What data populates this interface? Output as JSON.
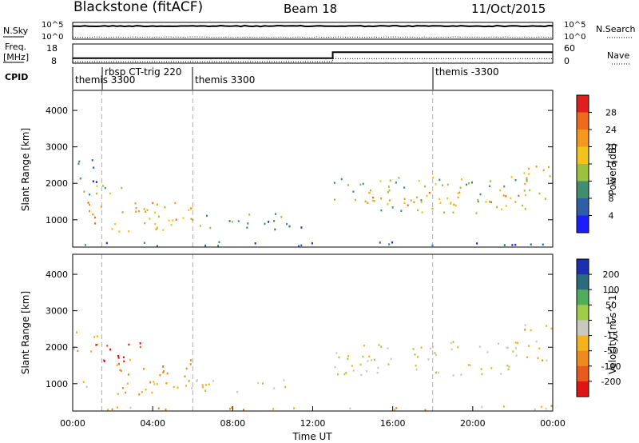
{
  "header": {
    "station": "Blackstone (fitACF)",
    "beam": "Beam 18",
    "date": "11/Oct/2015"
  },
  "top_panels": {
    "nsky": {
      "label": "N.Sky",
      "left_ticks": [
        "10^5",
        "10^0"
      ],
      "right_ticks": [
        "10^5",
        "10^0"
      ],
      "right_label": "N.Search"
    },
    "freq": {
      "label_line1": "Freq.",
      "label_line2": "[MHz]",
      "left_ticks": [
        "18",
        "8"
      ],
      "right_ticks": [
        "60",
        "0"
      ],
      "right_label": "Nave",
      "freq_steps": [
        {
          "t": 0,
          "v": 10.4
        },
        {
          "t": 13.0,
          "v": 13.8
        }
      ],
      "nave_steps": [
        {
          "t": 0,
          "v": 2
        },
        {
          "t": 13.0,
          "v": 13
        }
      ]
    },
    "cpid": {
      "label": "CPID",
      "segments": [
        {
          "start": 0.0,
          "label": "themis 3300"
        },
        {
          "start": 1.45,
          "label": "rbsp CT-trig 220"
        },
        {
          "start": 6.0,
          "label": "themis 3300"
        },
        {
          "start": 18.0,
          "label": "themis -3300"
        }
      ]
    }
  },
  "chart_data": [
    {
      "type": "heatmap",
      "name": "power",
      "ylabel": "Slant Range [km]",
      "ylim": [
        250,
        4550
      ],
      "yticks": [
        "1000",
        "2000",
        "3000",
        "4000"
      ],
      "colorbar_label": "Power [dB]",
      "colorbar_ticks": [
        "4",
        "8",
        "12",
        "16",
        "20",
        "24",
        "28"
      ],
      "colors": [
        "#1c1cff",
        "#2e5ea8",
        "#3f8f6e",
        "#9bc23c",
        "#f2c41b",
        "#f39a1e",
        "#ee6a1c",
        "#e01e1e"
      ],
      "scatter_bands": [
        {
          "t0": 0.0,
          "t1": 1.3,
          "r0": 1900,
          "r1": 2700,
          "level": 1
        },
        {
          "t0": 0.3,
          "t1": 3.0,
          "r0": 1700,
          "r1": 2100,
          "level": 3
        },
        {
          "t0": 0.5,
          "t1": 6.0,
          "r0": 700,
          "r1": 1500,
          "level": 5
        },
        {
          "t0": 3.0,
          "t1": 6.0,
          "r0": 900,
          "r1": 1400,
          "level": 4
        },
        {
          "t0": 6.0,
          "t1": 11.0,
          "r0": 800,
          "r1": 1200,
          "level": 2
        },
        {
          "t0": 9.0,
          "t1": 11.5,
          "r0": 700,
          "r1": 1000,
          "level": 1
        },
        {
          "t0": 13.0,
          "t1": 23.0,
          "r0": 1200,
          "r1": 2200,
          "level": 3
        },
        {
          "t0": 14.5,
          "t1": 22.5,
          "r0": 1400,
          "r1": 1800,
          "level": 5
        },
        {
          "t0": 22.5,
          "t1": 24.0,
          "r0": 1600,
          "r1": 2800,
          "level": 4
        },
        {
          "t0": 0.0,
          "t1": 24.0,
          "r0": 300,
          "r1": 420,
          "level": 1
        }
      ]
    },
    {
      "type": "heatmap",
      "name": "velocity",
      "ylabel": "Slant Range [km]",
      "ylim": [
        250,
        4550
      ],
      "yticks": [
        "1000",
        "2000",
        "3000",
        "4000"
      ],
      "xlabel": "Time UT",
      "xticks": [
        "00:00",
        "04:00",
        "08:00",
        "12:00",
        "16:00",
        "20:00",
        "00:00"
      ],
      "colorbar_label": "Velocity [m s^-1]",
      "colorbar_ticks": [
        "200",
        "100",
        "50",
        "15",
        "-15",
        "-50",
        "-100",
        "-200"
      ],
      "colors": [
        "#1c2fb0",
        "#2a6b7c",
        "#4fae5a",
        "#9ecd49",
        "#c8c8c0",
        "#f3b31e",
        "#ef8a1f",
        "#e85b1c",
        "#e01414"
      ],
      "scatter_bands": [
        {
          "t0": 0.0,
          "t1": 1.3,
          "r0": 1900,
          "r1": 2600,
          "level": 5
        },
        {
          "t0": 1.0,
          "t1": 4.0,
          "r0": 1600,
          "r1": 2150,
          "level": 8
        },
        {
          "t0": 2.0,
          "t1": 6.0,
          "r0": 1000,
          "r1": 1700,
          "level": 6
        },
        {
          "t0": 0.5,
          "t1": 6.5,
          "r0": 700,
          "r1": 1100,
          "level": 5
        },
        {
          "t0": 6.0,
          "t1": 11.5,
          "r0": 800,
          "r1": 1150,
          "level": 4
        },
        {
          "t0": 13.0,
          "t1": 22.5,
          "r0": 1250,
          "r1": 2200,
          "level": 4
        },
        {
          "t0": 22.5,
          "t1": 24.0,
          "r0": 1500,
          "r1": 2700,
          "level": 5
        },
        {
          "t0": 0.0,
          "t1": 24.0,
          "r0": 300,
          "r1": 420,
          "level": 5
        }
      ]
    }
  ]
}
